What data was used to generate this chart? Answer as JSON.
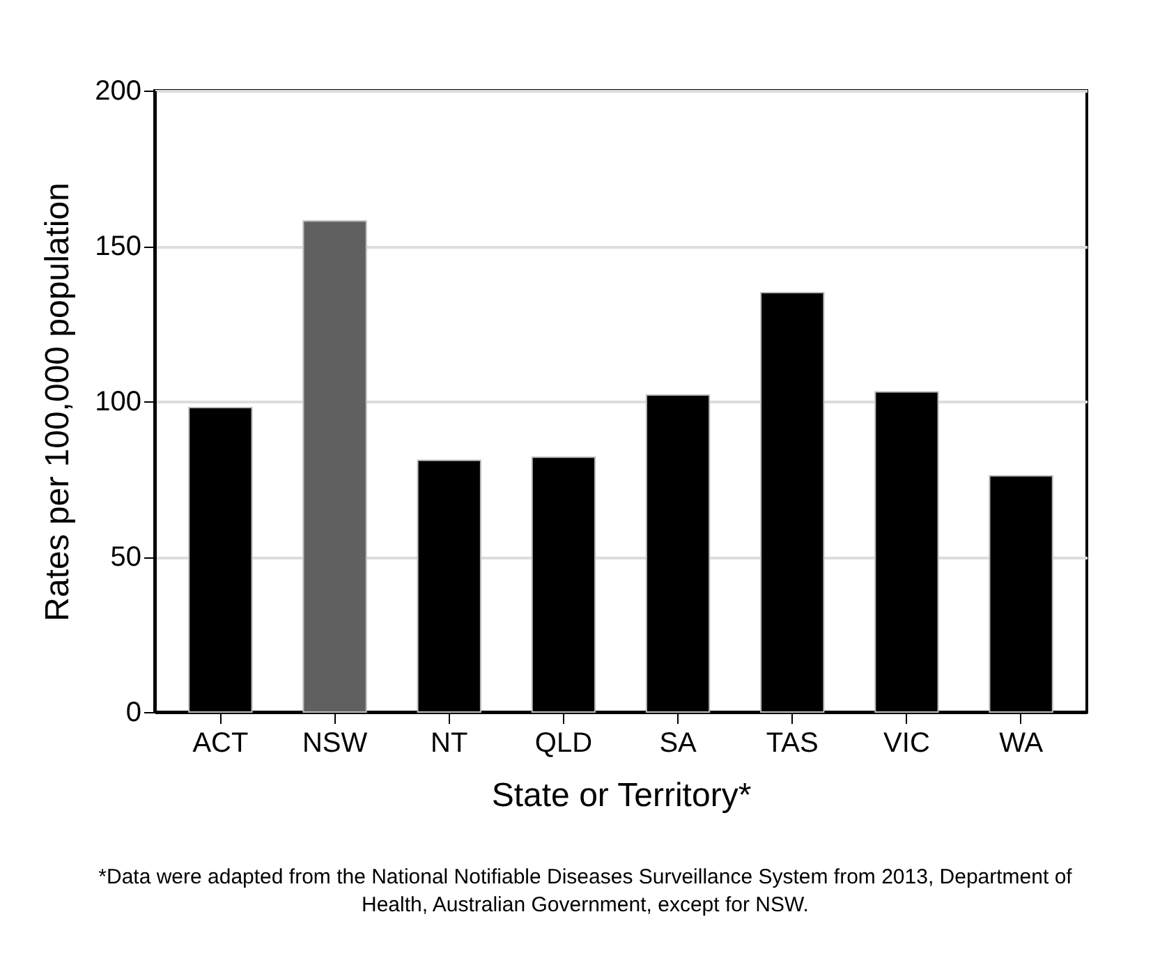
{
  "chart_data": {
    "type": "bar",
    "xlabel": "State or Territory*",
    "ylabel": "Rates per 100,000 population",
    "categories": [
      "ACT",
      "NSW",
      "NT",
      "QLD",
      "SA",
      "TAS",
      "VIC",
      "WA"
    ],
    "values": [
      98,
      158,
      81,
      82,
      102,
      135,
      103,
      76
    ],
    "colors": [
      "#000000",
      "#606060",
      "#000000",
      "#000000",
      "#000000",
      "#000000",
      "#000000",
      "#000000"
    ],
    "ylim": [
      0,
      200
    ],
    "yticks": [
      0,
      50,
      100,
      150,
      200
    ],
    "grid": "y",
    "annotations": [
      "*Data were adapted from the National Notifiable Diseases Surveillance System from 2013, Department of Health, Australian Government, except for NSW."
    ]
  }
}
